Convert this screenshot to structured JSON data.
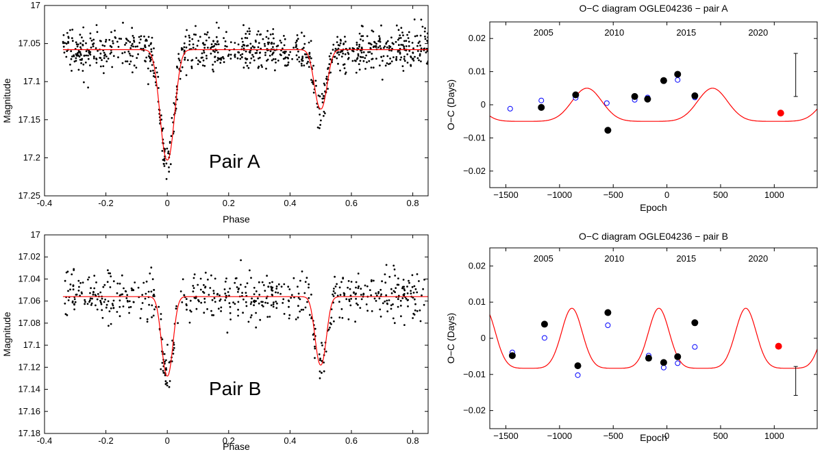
{
  "chart_data": [
    {
      "id": "lc-a",
      "type": "scatter",
      "title": "",
      "panel_label": "Pair A",
      "xlabel": "Phase",
      "ylabel": "Magnitude",
      "xlim": [
        -0.4,
        0.85
      ],
      "ylim": [
        17.0,
        17.25
      ],
      "y_inverted": true,
      "xticks": [
        "-0.4",
        "-0.2",
        "0",
        "0.2",
        "0.4",
        "0.6",
        "0.8"
      ],
      "xtick_values": [
        -0.4,
        -0.2,
        0,
        0.2,
        0.4,
        0.6,
        0.8
      ],
      "yticks": [
        "17",
        "17.05",
        "17.1",
        "17.15",
        "17.2",
        "17.25"
      ],
      "ytick_values": [
        17.0,
        17.05,
        17.1,
        17.15,
        17.2,
        17.25
      ],
      "model": {
        "baseline": 17.058,
        "primary": {
          "center": 0.0,
          "depth": 0.145,
          "width": 0.032
        },
        "secondary": {
          "center": 0.5,
          "depth": 0.078,
          "width": 0.028
        },
        "color": "#ff0000"
      },
      "points": {
        "count": 900,
        "x_range": [
          -0.34,
          0.85
        ],
        "scatter": 0.014,
        "color": "#000000",
        "seed": 11
      }
    },
    {
      "id": "oc-a",
      "type": "scatter",
      "title": "O−C diagram OGLE04236 − pair A",
      "xlabel": "Epoch",
      "ylabel": "O−C (Days)",
      "xlim": [
        -1650,
        1400
      ],
      "ylim": [
        -0.025,
        0.025
      ],
      "xticks": [
        "−1500",
        "−1000",
        "−500",
        "0",
        "500",
        "1000"
      ],
      "xtick_values": [
        -1500,
        -1000,
        -500,
        0,
        500,
        1000
      ],
      "yticks": [
        "0.02",
        "0.01",
        "0",
        "−0.01",
        "−0.02"
      ],
      "ytick_values": [
        0.02,
        0.01,
        0,
        -0.01,
        -0.02
      ],
      "year_ticks": [
        "2005",
        "2010",
        "2015",
        "2020"
      ],
      "year_tick_epochs": [
        -1150,
        -490,
        180,
        850
      ],
      "model": {
        "period": 1170,
        "phase": -1330,
        "amplitude": 0.005,
        "sharpness": 2.2,
        "color": "#ff0000"
      },
      "primary_minima": [
        [
          -1170,
          -0.0008
        ],
        [
          -850,
          0.003
        ],
        [
          -550,
          -0.0077
        ],
        [
          -300,
          0.0025
        ],
        [
          -180,
          0.0017
        ],
        [
          -30,
          0.0073
        ],
        [
          100,
          0.0092
        ],
        [
          260,
          0.0027
        ]
      ],
      "secondary_minima": [
        [
          -1460,
          -0.0012
        ],
        [
          -1170,
          0.0013
        ],
        [
          -850,
          0.0021
        ],
        [
          -560,
          0.0005
        ],
        [
          -300,
          0.0015
        ],
        [
          -180,
          0.0022
        ],
        [
          100,
          0.0075
        ],
        [
          260,
          0.0022
        ]
      ],
      "new_minimum": [
        1060,
        -0.0025
      ],
      "error_bar": {
        "epoch": 1200,
        "low": 0.0025,
        "high": 0.0155
      }
    },
    {
      "id": "lc-b",
      "type": "scatter",
      "title": "",
      "panel_label": "Pair B",
      "xlabel": "Phase",
      "ylabel": "Magnitude",
      "xlim": [
        -0.4,
        0.85
      ],
      "ylim": [
        17.0,
        17.18
      ],
      "y_inverted": true,
      "xticks": [
        "-0.4",
        "-0.2",
        "0",
        "0.2",
        "0.4",
        "0.6",
        "0.8"
      ],
      "xtick_values": [
        -0.4,
        -0.2,
        0,
        0.2,
        0.4,
        0.6,
        0.8
      ],
      "yticks": [
        "17",
        "17.02",
        "17.04",
        "17.06",
        "17.08",
        "17.1",
        "17.12",
        "17.14",
        "17.16",
        "17.18"
      ],
      "ytick_values": [
        17.0,
        17.02,
        17.04,
        17.06,
        17.08,
        17.1,
        17.12,
        17.14,
        17.16,
        17.18
      ],
      "model": {
        "baseline": 17.056,
        "primary": {
          "center": 0.0,
          "depth": 0.072,
          "width": 0.025
        },
        "secondary": {
          "center": 0.5,
          "depth": 0.062,
          "width": 0.025
        },
        "color": "#ff0000"
      },
      "points": {
        "count": 600,
        "x_range": [
          -0.34,
          0.85
        ],
        "scatter": 0.011,
        "color": "#000000",
        "seed": 29
      }
    },
    {
      "id": "oc-b",
      "type": "scatter",
      "title": "O−C diagram OGLE04236 − pair B",
      "xlabel": "Epoch",
      "ylabel": "O−C (Days)",
      "xlim": [
        -1650,
        1400
      ],
      "ylim": [
        -0.025,
        0.025
      ],
      "xticks": [
        "−1500",
        "−1000",
        "−500",
        "0",
        "500",
        "1000"
      ],
      "xtick_values": [
        -1500,
        -1000,
        -500,
        0,
        500,
        1000
      ],
      "yticks": [
        "0.02",
        "0.01",
        "0",
        "−0.01",
        "−0.02"
      ],
      "ytick_values": [
        0.02,
        0.01,
        0,
        -0.01,
        -0.02
      ],
      "year_ticks": [
        "2005",
        "2010",
        "2015",
        "2020"
      ],
      "year_tick_epochs": [
        -1150,
        -490,
        180,
        850
      ],
      "model": {
        "period": 810,
        "phase": -1290,
        "amplitude": 0.0083,
        "sharpness": 2.6,
        "color": "#ff0000"
      },
      "primary_minima": [
        [
          -1440,
          -0.0048
        ],
        [
          -1140,
          0.0039
        ],
        [
          -830,
          -0.0076
        ],
        [
          -550,
          0.0071
        ],
        [
          -170,
          -0.0055
        ],
        [
          -30,
          -0.0067
        ],
        [
          100,
          -0.0051
        ],
        [
          260,
          0.0043
        ]
      ],
      "secondary_minima": [
        [
          -1440,
          -0.0039
        ],
        [
          -1140,
          0.0001
        ],
        [
          -830,
          -0.0102
        ],
        [
          -550,
          0.0036
        ],
        [
          -170,
          -0.0048
        ],
        [
          -30,
          -0.0081
        ],
        [
          100,
          -0.0069
        ],
        [
          260,
          -0.0024
        ]
      ],
      "new_minimum": [
        1040,
        -0.0022
      ],
      "error_bar": {
        "epoch": 1200,
        "low": -0.0158,
        "high": -0.0078
      }
    }
  ]
}
